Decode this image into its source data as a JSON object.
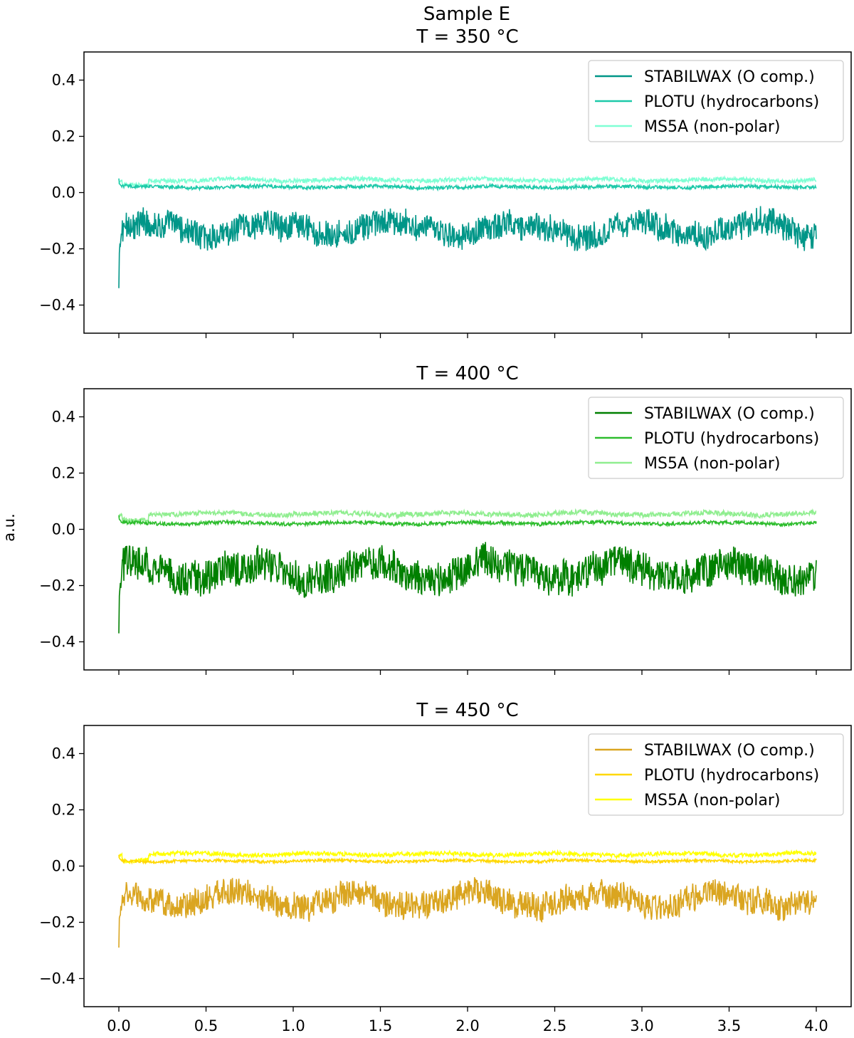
{
  "figure": {
    "suptitle": "Sample E",
    "ylabel": "a.u."
  },
  "chart_data": [
    {
      "type": "line",
      "title": "T = 350 °C",
      "xlim": [
        -0.2,
        4.2
      ],
      "ylim": [
        -0.5,
        0.5
      ],
      "xticks": [
        0.0,
        0.5,
        1.0,
        1.5,
        2.0,
        2.5,
        3.0,
        3.5,
        4.0
      ],
      "xtick_labels": [],
      "yticks": [
        -0.4,
        -0.2,
        0.0,
        0.2,
        0.4
      ],
      "ytick_labels": [
        "−0.4",
        "−0.2",
        "0.0",
        "0.2",
        "0.4"
      ],
      "legend_location": "upper right",
      "series": [
        {
          "name": "STABILWAX (O comp.)",
          "color": "#009688",
          "x_range": [
            0,
            4
          ],
          "baseline": -0.13,
          "amplitude": 0.04,
          "spike_start": -0.34
        },
        {
          "name": "PLOTU (hydrocarbons)",
          "color": "#1dc9a9",
          "x_range": [
            0,
            4
          ],
          "baseline": 0.02,
          "amplitude": 0.005,
          "spike_start": 0.05
        },
        {
          "name": "MS5A (non-polar)",
          "color": "#7fffd4",
          "x_range": [
            0,
            4
          ],
          "baseline": 0.045,
          "amplitude": 0.006,
          "spike_start": 0.03
        }
      ]
    },
    {
      "type": "line",
      "title": "T = 400 °C",
      "xlim": [
        -0.2,
        4.2
      ],
      "ylim": [
        -0.5,
        0.5
      ],
      "xticks": [
        0.0,
        0.5,
        1.0,
        1.5,
        2.0,
        2.5,
        3.0,
        3.5,
        4.0
      ],
      "xtick_labels": [],
      "yticks": [
        -0.4,
        -0.2,
        0.0,
        0.2,
        0.4
      ],
      "ytick_labels": [
        "−0.4",
        "−0.2",
        "0.0",
        "0.2",
        "0.4"
      ],
      "legend_location": "upper right",
      "series": [
        {
          "name": "STABILWAX (O comp.)",
          "color": "#008000",
          "x_range": [
            0,
            4
          ],
          "baseline": -0.15,
          "amplitude": 0.05,
          "spike_start": -0.37
        },
        {
          "name": "PLOTU (hydrocarbons)",
          "color": "#2ebd2e",
          "x_range": [
            0,
            4
          ],
          "baseline": 0.022,
          "amplitude": 0.005,
          "spike_start": 0.05
        },
        {
          "name": "MS5A (non-polar)",
          "color": "#90ee90",
          "x_range": [
            0,
            4
          ],
          "baseline": 0.055,
          "amplitude": 0.007,
          "spike_start": 0.04
        }
      ]
    },
    {
      "type": "line",
      "title": "T = 450 °C",
      "xlim": [
        -0.2,
        4.2
      ],
      "ylim": [
        -0.5,
        0.5
      ],
      "xticks": [
        0.0,
        0.5,
        1.0,
        1.5,
        2.0,
        2.5,
        3.0,
        3.5,
        4.0
      ],
      "xtick_labels": [
        "0.0",
        "0.5",
        "1.0",
        "1.5",
        "2.0",
        "2.5",
        "3.0",
        "3.5",
        "4.0"
      ],
      "yticks": [
        -0.4,
        -0.2,
        0.0,
        0.2,
        0.4
      ],
      "ytick_labels": [
        "−0.4",
        "−0.2",
        "0.0",
        "0.2",
        "0.4"
      ],
      "legend_location": "upper right",
      "series": [
        {
          "name": "STABILWAX (O comp.)",
          "color": "#daa520",
          "x_range": [
            0,
            4
          ],
          "baseline": -0.12,
          "amplitude": 0.04,
          "spike_start": -0.29
        },
        {
          "name": "PLOTU (hydrocarbons)",
          "color": "#ffd700",
          "x_range": [
            0,
            4
          ],
          "baseline": 0.018,
          "amplitude": 0.004,
          "spike_start": 0.04
        },
        {
          "name": "MS5A (non-polar)",
          "color": "#ffff00",
          "x_range": [
            0,
            4
          ],
          "baseline": 0.042,
          "amplitude": 0.006,
          "spike_start": 0.03
        }
      ]
    }
  ]
}
